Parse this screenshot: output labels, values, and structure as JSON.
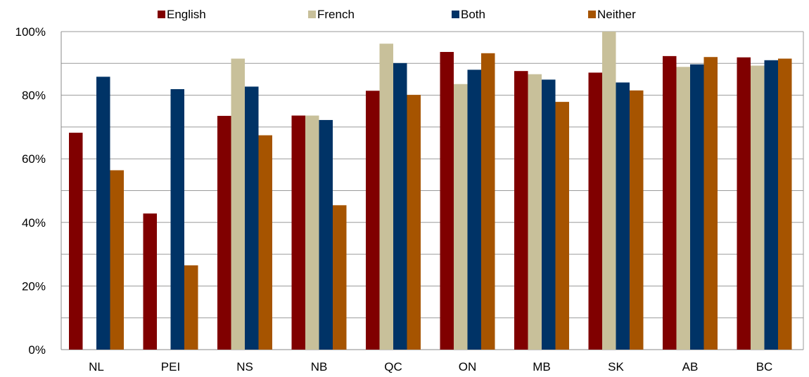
{
  "chart_data": {
    "type": "bar",
    "title": "",
    "xlabel": "",
    "ylabel": "",
    "categories": [
      "NL",
      "PEI",
      "NS",
      "NB",
      "QC",
      "ON",
      "MB",
      "SK",
      "AB",
      "BC"
    ],
    "ylim": [
      0,
      100
    ],
    "yticks": [
      0,
      20,
      40,
      60,
      80,
      100
    ],
    "ytick_labels": [
      "0%",
      "20%",
      "40%",
      "60%",
      "80%",
      "100%"
    ],
    "grid": true,
    "legend_position": "top",
    "series": [
      {
        "name": "English",
        "color": "#800000",
        "values": [
          68.2,
          42.8,
          73.5,
          73.6,
          81.4,
          93.6,
          87.6,
          87.1,
          92.3,
          91.9
        ]
      },
      {
        "name": "French",
        "color": "#C8C09A",
        "values": [
          null,
          null,
          91.5,
          73.6,
          96.2,
          83.5,
          86.6,
          100.0,
          88.9,
          89.3
        ]
      },
      {
        "name": "Both",
        "color": "#003366",
        "values": [
          85.8,
          81.9,
          82.7,
          72.2,
          90.1,
          88.0,
          84.9,
          84.0,
          89.7,
          91.0
        ]
      },
      {
        "name": "Neither",
        "color": "#A65400",
        "values": [
          56.4,
          26.5,
          67.4,
          45.4,
          80.1,
          93.2,
          77.9,
          81.5,
          92.0,
          91.5
        ]
      }
    ]
  }
}
